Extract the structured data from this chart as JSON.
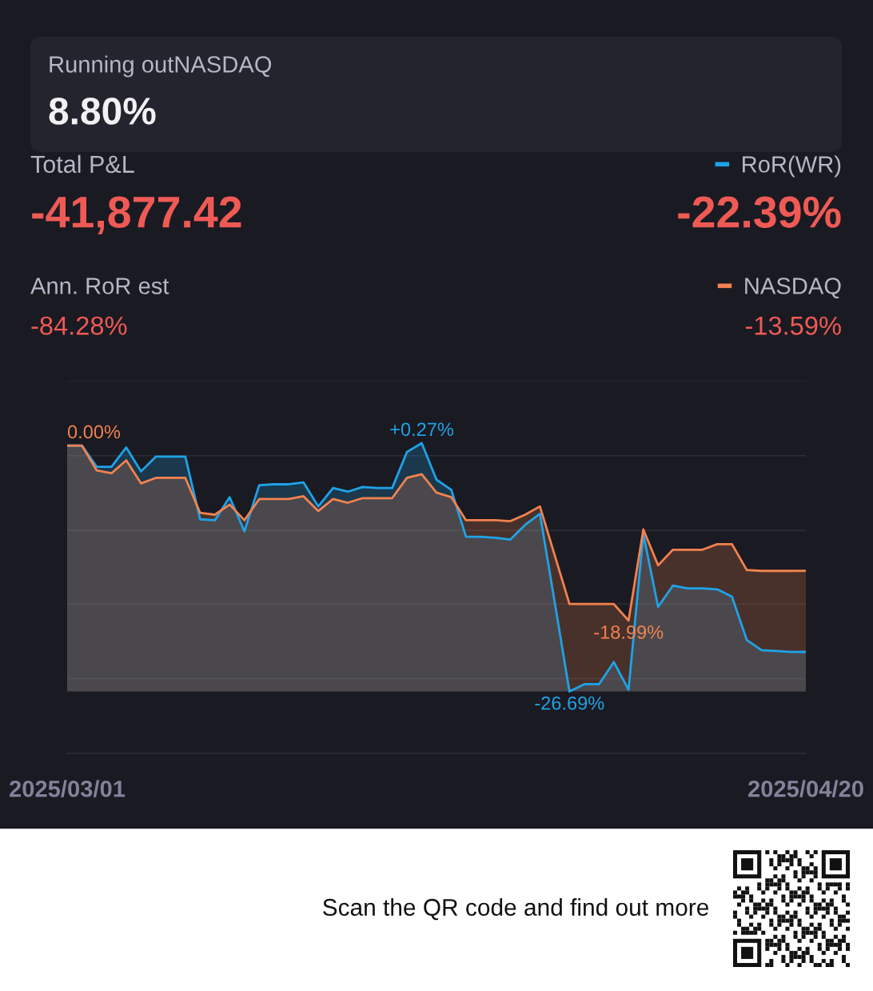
{
  "chart_data": {
    "type": "line",
    "annotations": [
      "Running outNASDAQ",
      "8.80%",
      "Total P&L",
      "-41,877.42",
      "Ann. RoR est",
      "-84.28%",
      "-22.39%",
      "-13.59%",
      "Scan the QR code and find out more"
    ],
    "x": [
      "2025-03-01",
      "2025-03-02",
      "2025-03-03",
      "2025-03-04",
      "2025-03-05",
      "2025-03-06",
      "2025-03-07",
      "2025-03-08",
      "2025-03-09",
      "2025-03-10",
      "2025-03-11",
      "2025-03-12",
      "2025-03-13",
      "2025-03-14",
      "2025-03-15",
      "2025-03-16",
      "2025-03-17",
      "2025-03-18",
      "2025-03-19",
      "2025-03-20",
      "2025-03-21",
      "2025-03-22",
      "2025-03-23",
      "2025-03-24",
      "2025-03-25",
      "2025-03-26",
      "2025-03-27",
      "2025-03-28",
      "2025-03-29",
      "2025-03-30",
      "2025-03-31",
      "2025-04-01",
      "2025-04-02",
      "2025-04-03",
      "2025-04-04",
      "2025-04-05",
      "2025-04-06",
      "2025-04-07",
      "2025-04-08",
      "2025-04-09",
      "2025-04-10",
      "2025-04-11",
      "2025-04-12",
      "2025-04-13",
      "2025-04-14",
      "2025-04-15",
      "2025-04-16",
      "2025-04-17",
      "2025-04-18",
      "2025-04-19",
      "2025-04-20"
    ],
    "series": [
      {
        "name": "RoR(WR)",
        "color": "#1fa3e8",
        "values": [
          0,
          0,
          -2.3,
          -2.3,
          -0.2,
          -2.8,
          -1.2,
          -1.2,
          -1.2,
          -8.0,
          -8.1,
          -5.6,
          -9.3,
          -4.3,
          -4.2,
          -4.2,
          -4.0,
          -6.6,
          -4.6,
          -5.0,
          -4.5,
          -4.6,
          -4.6,
          -0.7,
          0.27,
          -3.7,
          -4.8,
          -9.9,
          -9.9,
          -10.0,
          -10.2,
          -8.6,
          -7.4,
          -17.0,
          -26.69,
          -25.9,
          -25.9,
          -23.5,
          -26.5,
          -9.6,
          -17.5,
          -15.2,
          -15.5,
          -15.5,
          -15.6,
          -16.4,
          -21.1,
          -22.2,
          -22.3,
          -22.4,
          -22.39
        ],
        "upper": [
          0,
          0,
          -2.3,
          -2.3,
          -0.2,
          -2.8,
          -1.2,
          -1.2,
          -1.2,
          -8.0,
          -8.1,
          -5.6,
          -9.3,
          -4.3,
          -4.2,
          -4.2,
          -4.0,
          -6.6,
          -4.6,
          -5.0,
          -4.5,
          -4.6,
          -4.6,
          -0.7,
          0.27,
          -3.7,
          -4.8,
          -9.9,
          -9.9,
          -10.0,
          -10.2,
          -8.6,
          -7.4,
          -17.0,
          -26.69,
          -25.9,
          -25.9,
          -23.5,
          -26.5,
          -9.6,
          -17.5,
          -15.2,
          -15.5,
          -15.5,
          -15.6,
          -16.4,
          -21.1,
          -22.2,
          -22.3,
          -22.4,
          -22.39
        ],
        "lower": [
          -26.69,
          -26.69,
          -26.69,
          -26.69,
          -26.69,
          -26.69,
          -26.69,
          -26.69,
          -26.69,
          -26.69,
          -26.69,
          -26.69,
          -26.69,
          -26.69,
          -26.69,
          -26.69,
          -26.69,
          -26.69,
          -26.69,
          -26.69,
          -26.69,
          -26.69,
          -26.69,
          -26.69,
          -26.69,
          -26.69,
          -26.69,
          -26.69,
          -26.69,
          -26.69,
          -26.69,
          -26.69,
          -26.69,
          -26.69,
          -26.69,
          -26.69,
          -26.69,
          -26.69,
          -26.69,
          -26.69,
          -26.69,
          -26.69,
          -26.69,
          -26.69,
          -26.69,
          -26.69,
          -26.69,
          -26.69,
          -26.69,
          -26.69,
          -26.69
        ],
        "value_labels": [
          null,
          null,
          null,
          null,
          null,
          null,
          null,
          null,
          null,
          null,
          null,
          null,
          null,
          null,
          null,
          null,
          null,
          null,
          null,
          null,
          null,
          null,
          null,
          null,
          "+0.27%",
          null,
          null,
          null,
          null,
          null,
          null,
          null,
          null,
          null,
          "-26.69%",
          null,
          null,
          null,
          null,
          null,
          null,
          null,
          null,
          null,
          null,
          null,
          null,
          null,
          null,
          null,
          null
        ]
      },
      {
        "name": "NASDAQ",
        "color": "#f2824f",
        "values": [
          0,
          0,
          -2.7,
          -3.0,
          -1.6,
          -4.1,
          -3.5,
          -3.5,
          -3.5,
          -7.3,
          -7.5,
          -6.4,
          -8.1,
          -5.8,
          -5.8,
          -5.8,
          -5.5,
          -7.1,
          -5.8,
          -6.2,
          -5.7,
          -5.7,
          -5.7,
          -3.5,
          -3.1,
          -5.1,
          -5.6,
          -8.1,
          -8.1,
          -8.1,
          -8.2,
          -7.5,
          -6.6,
          -11.9,
          -17.2,
          -17.2,
          -17.2,
          -17.2,
          -18.99,
          -9.1,
          -13.0,
          -11.3,
          -11.3,
          -11.3,
          -10.7,
          -10.7,
          -13.5,
          -13.6,
          -13.6,
          -13.6,
          -13.59
        ],
        "upper": [
          0,
          0,
          -2.7,
          -3.0,
          -1.6,
          -4.1,
          -3.5,
          -3.5,
          -3.5,
          -7.3,
          -7.5,
          -6.4,
          -8.1,
          -5.8,
          -5.8,
          -5.8,
          -5.5,
          -7.1,
          -5.8,
          -6.2,
          -5.7,
          -5.7,
          -5.7,
          -3.5,
          -3.1,
          -5.1,
          -5.6,
          -8.1,
          -8.1,
          -8.1,
          -8.2,
          -7.5,
          -6.6,
          -11.9,
          -17.2,
          -17.2,
          -17.2,
          -17.2,
          -18.99,
          -9.1,
          -13.0,
          -11.3,
          -11.3,
          -11.3,
          -10.7,
          -10.7,
          -13.5,
          -13.6,
          -13.6,
          -13.6,
          -13.59
        ],
        "lower": [
          -26.69,
          -26.69,
          -26.69,
          -26.69,
          -26.69,
          -26.69,
          -26.69,
          -26.69,
          -26.69,
          -26.69,
          -26.69,
          -26.69,
          -26.69,
          -26.69,
          -26.69,
          -26.69,
          -26.69,
          -26.69,
          -26.69,
          -26.69,
          -26.69,
          -26.69,
          -26.69,
          -26.69,
          -26.69,
          -26.69,
          -26.69,
          -26.69,
          -26.69,
          -26.69,
          -26.69,
          -26.69,
          -26.69,
          -26.69,
          -26.69,
          -26.69,
          -26.69,
          -26.69,
          -26.69,
          -26.69,
          -26.69,
          -26.69,
          -26.69,
          -26.69,
          -26.69,
          -26.69,
          -26.69,
          -26.69,
          -26.69,
          -26.69,
          -26.69
        ],
        "value_labels": [
          "0.00%",
          null,
          null,
          null,
          null,
          null,
          null,
          null,
          null,
          null,
          null,
          null,
          null,
          null,
          null,
          null,
          null,
          null,
          null,
          null,
          null,
          null,
          null,
          null,
          null,
          null,
          null,
          null,
          null,
          null,
          null,
          null,
          null,
          null,
          null,
          null,
          null,
          null,
          "-18.99%",
          null,
          null,
          null,
          null,
          null,
          null,
          null,
          null,
          null,
          null,
          null,
          null
        ]
      }
    ],
    "xlim": [
      "2025-03-01",
      "2025-04-20"
    ],
    "xticks": [
      {
        "value": "2025-03-01",
        "label": "2025/03/01"
      },
      {
        "value": "2025-04-20",
        "label": "2025/04/20"
      }
    ],
    "ylim": [
      -33.4,
      7.0
    ],
    "yticks": [
      {
        "value": 7.0,
        "label": null
      },
      {
        "value": -1.1,
        "label": null
      },
      {
        "value": -9.2,
        "label": null
      },
      {
        "value": -17.2,
        "label": null
      },
      {
        "value": -25.3,
        "label": null
      },
      {
        "value": -33.4,
        "label": null
      }
    ],
    "grid": "y",
    "legend": "top right",
    "tick_labels": "x"
  }
}
